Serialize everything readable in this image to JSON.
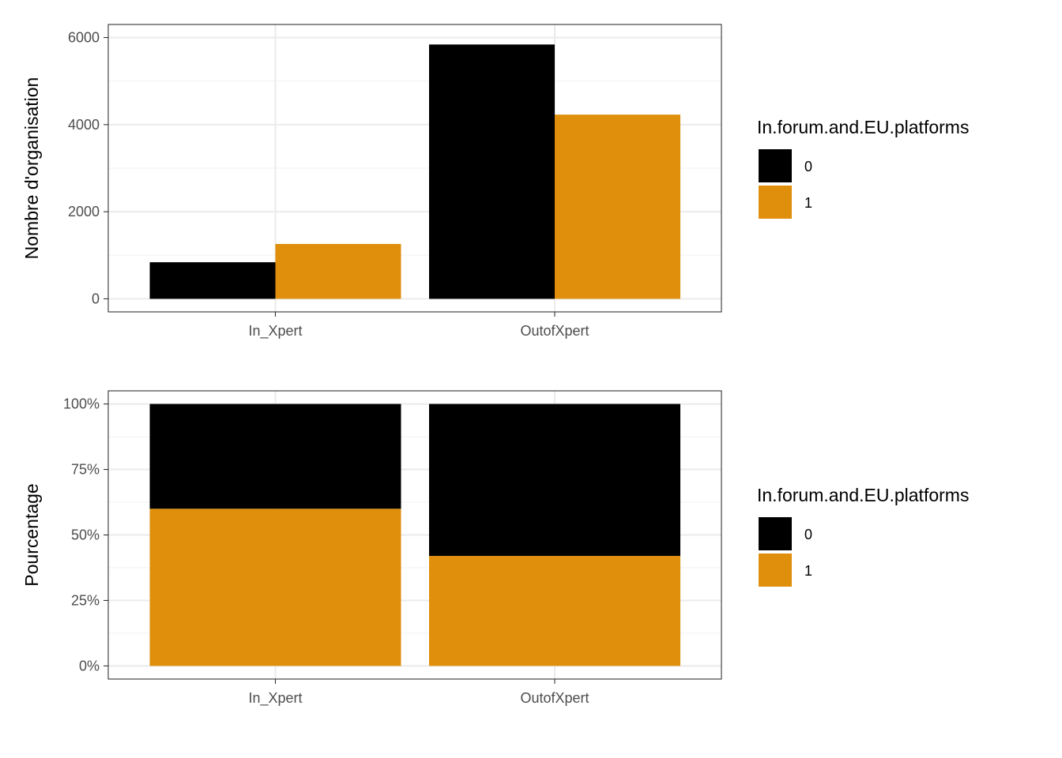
{
  "colors": {
    "series_0": "#000000",
    "series_1": "#DF8F0B",
    "grid_major": "#EBEBEB",
    "grid_minor": "#F2F2F2",
    "panel_border": "#333333",
    "tick_text": "#4D4D4D"
  },
  "chart_data": [
    {
      "type": "bar",
      "position": "dodge",
      "categories": [
        "In_Xpert",
        "OutofXpert"
      ],
      "series": [
        {
          "name": "0",
          "values": [
            840,
            5840
          ]
        },
        {
          "name": "1",
          "values": [
            1260,
            4230
          ]
        }
      ],
      "ylabel": "Nombre d'organisation",
      "xlabel": "",
      "ylim": [
        0,
        6000
      ],
      "yticks": [
        0,
        2000,
        4000,
        6000
      ],
      "ytick_labels": [
        "0",
        "2000",
        "4000",
        "6000"
      ],
      "grid": true,
      "legend": {
        "title": "In.forum.and.EU.platforms",
        "entries": [
          "0",
          "1"
        ],
        "placement": "right"
      }
    },
    {
      "type": "bar",
      "position": "fill",
      "categories": [
        "In_Xpert",
        "OutofXpert"
      ],
      "series": [
        {
          "name": "0",
          "values": [
            0.4,
            0.58
          ]
        },
        {
          "name": "1",
          "values": [
            0.6,
            0.42
          ]
        }
      ],
      "ylabel": "Pourcentage",
      "xlabel": "",
      "ylim": [
        0,
        1
      ],
      "yticks": [
        0,
        0.25,
        0.5,
        0.75,
        1
      ],
      "ytick_labels": [
        "0%",
        "25%",
        "50%",
        "75%",
        "100%"
      ],
      "grid": true,
      "legend": {
        "title": "In.forum.and.EU.platforms",
        "entries": [
          "0",
          "1"
        ],
        "placement": "right"
      }
    }
  ]
}
